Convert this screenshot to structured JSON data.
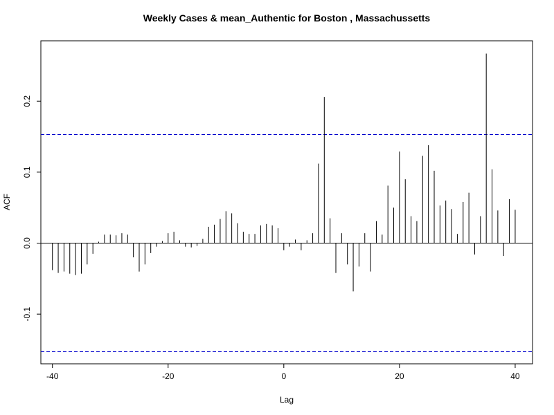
{
  "chart_data": {
    "type": "bar",
    "subtype": "acf-lollipop",
    "title": "Weekly Cases & mean_Authentic for Boston , Massachussetts",
    "xlabel": "Lag",
    "ylabel": "ACF",
    "xlim": [
      -42,
      43
    ],
    "ylim": [
      -0.17,
      0.285
    ],
    "x_ticks": [
      -40,
      -20,
      0,
      20,
      40
    ],
    "x_tick_labels": [
      "-40",
      "-20",
      "0",
      "20",
      "40"
    ],
    "y_ticks": [
      -0.1,
      0.0,
      0.1,
      0.2
    ],
    "y_tick_labels": [
      "-0.1",
      "0.0",
      "0.1",
      "0.2"
    ],
    "confidence_bounds": [
      0.153,
      -0.153
    ],
    "zero_line_color": "#000000",
    "bound_color": "#0000cc",
    "bar_color": "#000000",
    "grid": false,
    "lags": [
      -40,
      -39,
      -38,
      -37,
      -36,
      -35,
      -34,
      -33,
      -32,
      -31,
      -30,
      -29,
      -28,
      -27,
      -26,
      -25,
      -24,
      -23,
      -22,
      -21,
      -20,
      -19,
      -18,
      -17,
      -16,
      -15,
      -14,
      -13,
      -12,
      -11,
      -10,
      -9,
      -8,
      -7,
      -6,
      -5,
      -4,
      -3,
      -2,
      -1,
      0,
      1,
      2,
      3,
      4,
      5,
      6,
      7,
      8,
      9,
      10,
      11,
      12,
      13,
      14,
      15,
      16,
      17,
      18,
      19,
      20,
      21,
      22,
      23,
      24,
      25,
      26,
      27,
      28,
      29,
      30,
      31,
      32,
      33,
      34,
      35,
      36,
      37,
      38,
      39,
      40
    ],
    "values": [
      -0.038,
      -0.042,
      -0.04,
      -0.043,
      -0.045,
      -0.043,
      -0.03,
      -0.015,
      0.002,
      0.012,
      0.012,
      0.011,
      0.014,
      0.012,
      -0.02,
      -0.04,
      -0.03,
      -0.014,
      -0.005,
      0.003,
      0.014,
      0.016,
      0.004,
      -0.005,
      -0.006,
      -0.004,
      0.006,
      0.023,
      0.026,
      0.034,
      0.045,
      0.042,
      0.028,
      0.016,
      0.013,
      0.013,
      0.025,
      0.027,
      0.025,
      0.021,
      -0.01,
      -0.005,
      0.005,
      -0.01,
      0.004,
      0.014,
      0.112,
      0.206,
      0.035,
      -0.042,
      0.014,
      -0.03,
      -0.068,
      -0.033,
      0.014,
      -0.04,
      0.031,
      0.012,
      0.081,
      0.05,
      0.129,
      0.09,
      0.038,
      0.031,
      0.123,
      0.138,
      0.102,
      0.053,
      0.06,
      0.048,
      0.013,
      0.058,
      0.071,
      -0.016,
      0.038,
      0.267,
      0.104,
      0.046,
      -0.018,
      0.062,
      0.047
    ]
  }
}
